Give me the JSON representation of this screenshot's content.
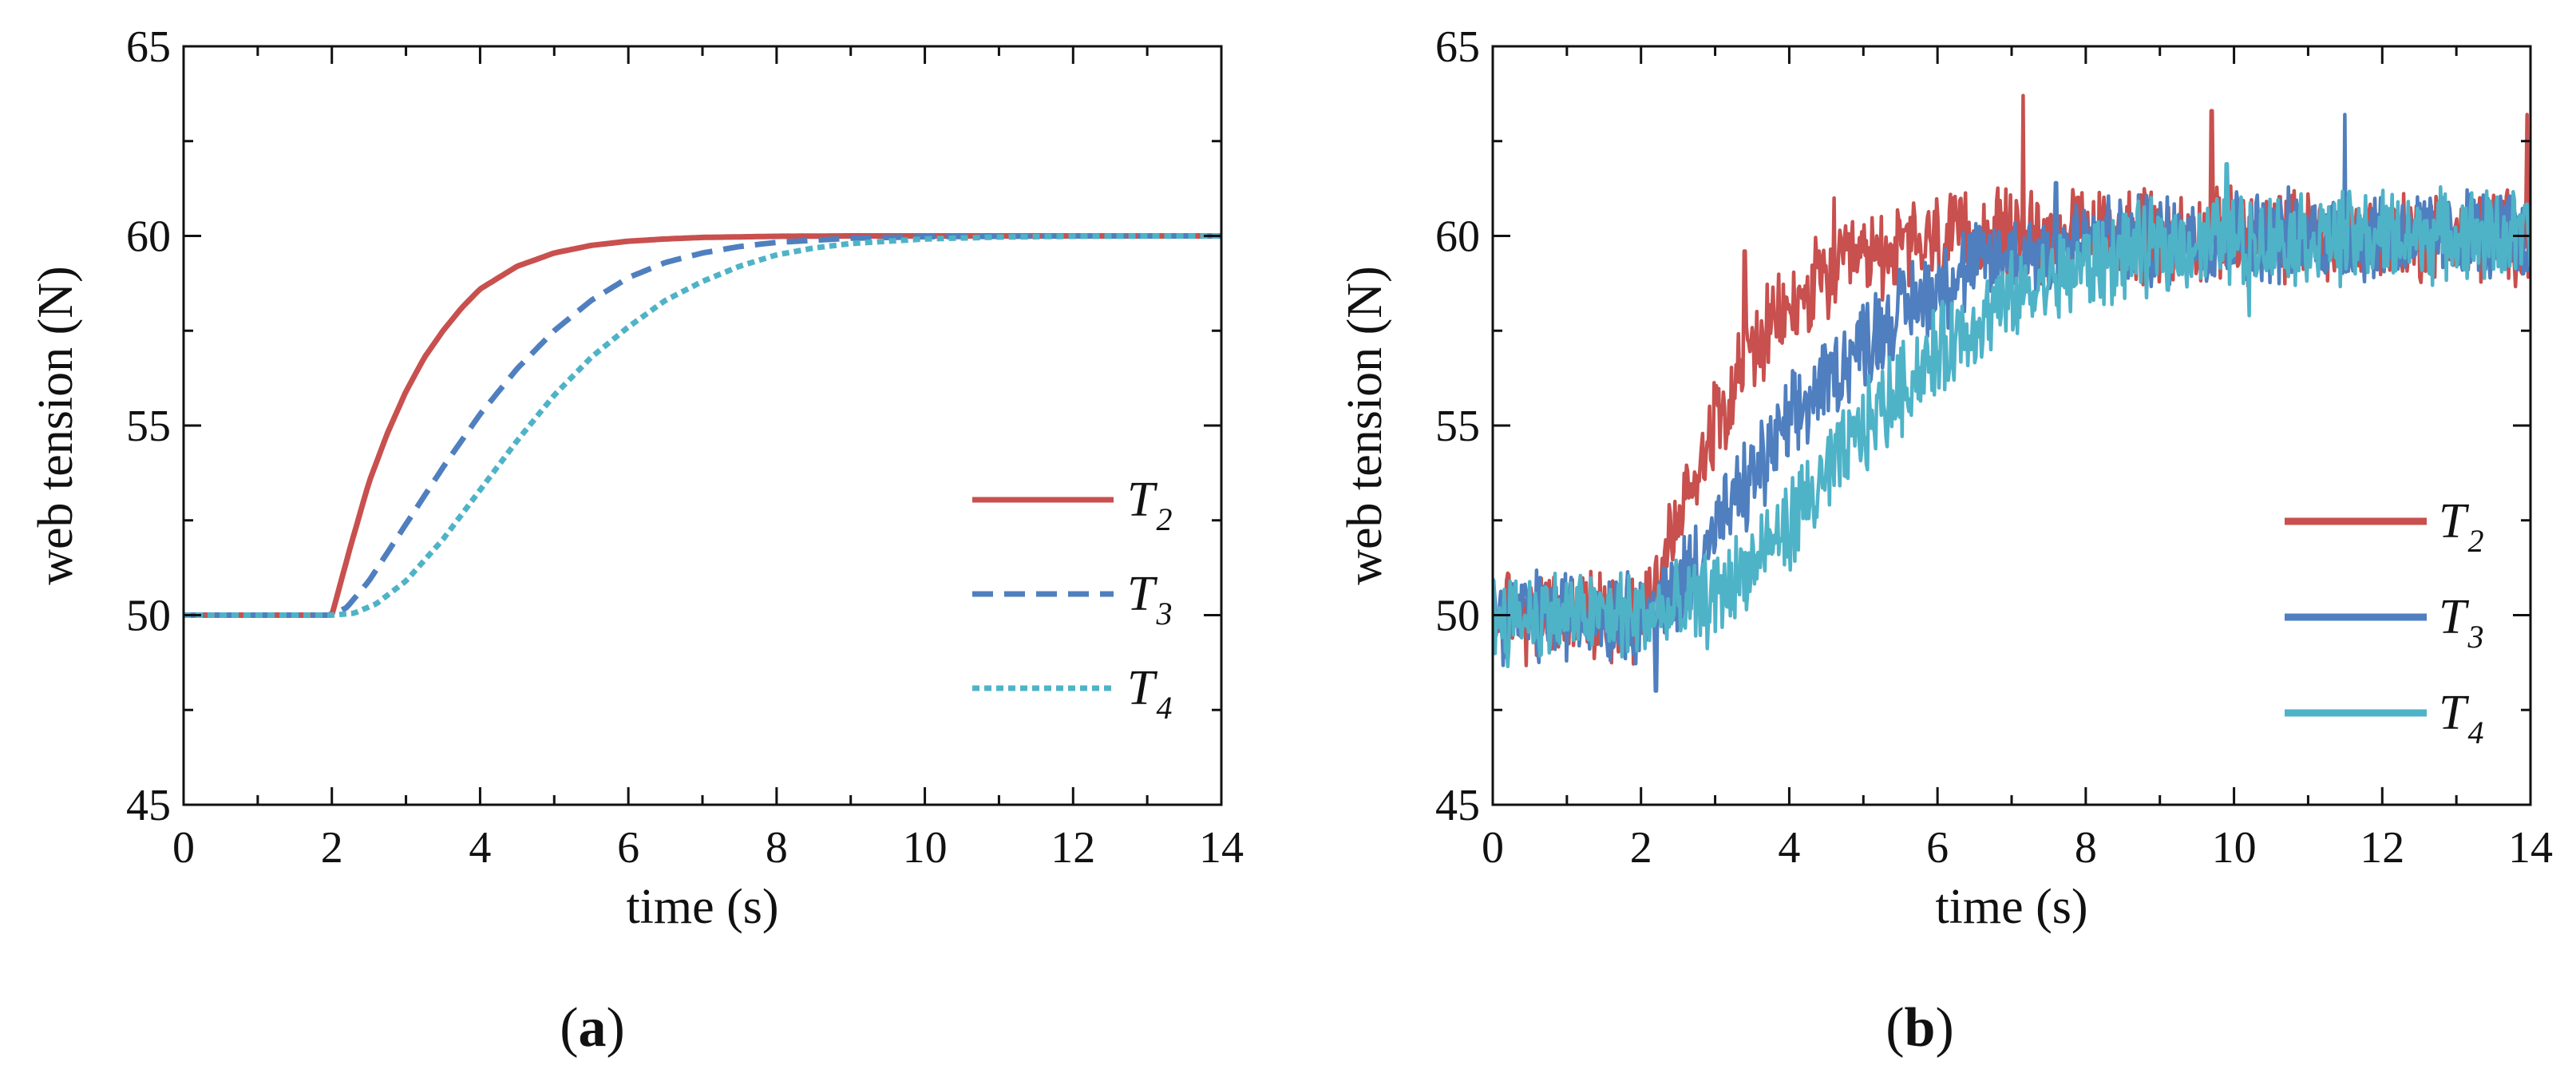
{
  "chart_data": [
    {
      "type": "line",
      "panel": "a",
      "panel_label": {
        "open": "(",
        "letter": "a",
        "close": ")"
      },
      "title": "",
      "xlabel": "time (s)",
      "ylabel": "web tension (N)",
      "xlim": [
        0,
        14
      ],
      "ylim": [
        45,
        65
      ],
      "xticks": [
        "0",
        "2",
        "4",
        "6",
        "8",
        "10",
        "12",
        "14"
      ],
      "yticks": [
        "45",
        "50",
        "55",
        "60",
        "65"
      ],
      "legend_position": "bottom-right",
      "series": [
        {
          "name": "T2",
          "label_main": "T",
          "label_sub": "2",
          "color": "#c8504e",
          "style": "solid",
          "x": [
            0,
            2,
            2.25,
            2.5,
            2.75,
            3,
            3.25,
            3.5,
            3.75,
            4,
            4.5,
            5,
            5.5,
            6,
            6.5,
            7,
            8,
            9,
            10,
            12,
            14
          ],
          "y": [
            50,
            50,
            51.8,
            53.5,
            54.8,
            55.9,
            56.8,
            57.5,
            58.1,
            58.6,
            59.2,
            59.55,
            59.75,
            59.86,
            59.92,
            59.96,
            59.99,
            60,
            60,
            60,
            60
          ]
        },
        {
          "name": "T3",
          "label_main": "T",
          "label_sub": "3",
          "color": "#4f7fbf",
          "style": "dashed",
          "x": [
            0,
            2,
            2.2,
            2.5,
            3,
            3.5,
            4,
            4.5,
            5,
            5.5,
            6,
            6.5,
            7,
            7.5,
            8,
            9,
            10,
            11,
            12,
            14
          ],
          "y": [
            50,
            50,
            50.2,
            50.9,
            52.4,
            53.9,
            55.3,
            56.5,
            57.5,
            58.3,
            58.9,
            59.3,
            59.55,
            59.72,
            59.83,
            59.94,
            59.98,
            59.99,
            60,
            60
          ]
        },
        {
          "name": "T4",
          "label_main": "T",
          "label_sub": "4",
          "color": "#4fb3c8",
          "style": "dotted",
          "x": [
            0,
            2,
            2.3,
            2.6,
            3,
            3.5,
            4,
            4.5,
            5,
            5.5,
            6,
            6.5,
            7,
            7.5,
            8,
            8.5,
            9,
            10,
            11,
            12,
            14
          ],
          "y": [
            50,
            50,
            50.05,
            50.3,
            50.9,
            52.0,
            53.3,
            54.6,
            55.8,
            56.8,
            57.6,
            58.3,
            58.8,
            59.2,
            59.5,
            59.68,
            59.8,
            59.92,
            59.97,
            59.99,
            60
          ]
        }
      ]
    },
    {
      "type": "line",
      "panel": "b",
      "panel_label": {
        "open": "(",
        "letter": "b",
        "close": ")"
      },
      "title": "",
      "xlabel": "time (s)",
      "ylabel": "web tension (N)",
      "xlim": [
        0,
        14
      ],
      "ylim": [
        45,
        65
      ],
      "xticks": [
        "0",
        "2",
        "4",
        "6",
        "8",
        "10",
        "12",
        "14"
      ],
      "yticks": [
        "45",
        "50",
        "55",
        "60",
        "65"
      ],
      "legend_position": "bottom-right",
      "noise": "high-frequency measurement noise of roughly ±0.8 N around each trend, with occasional spikes",
      "series": [
        {
          "name": "T2",
          "label_main": "T",
          "label_sub": "2",
          "color": "#c8504e",
          "style": "solid",
          "x": [
            0,
            2,
            2.5,
            3,
            3.5,
            4,
            4.5,
            5,
            5.5,
            6,
            7,
            8,
            10,
            12,
            14
          ],
          "y": [
            50,
            50,
            52.5,
            55.2,
            57.0,
            58.0,
            58.9,
            59.4,
            59.7,
            59.85,
            60,
            60,
            60,
            60,
            60
          ],
          "spikes": [
            [
              3.4,
              59.6
            ],
            [
              4.6,
              61.0
            ],
            [
              7.15,
              63.7
            ],
            [
              9.7,
              63.3
            ],
            [
              13.95,
              63.2
            ]
          ]
        },
        {
          "name": "T3",
          "label_main": "T",
          "label_sub": "3",
          "color": "#4f7fbf",
          "style": "solid",
          "x": [
            0,
            2.2,
            2.5,
            3,
            3.5,
            4,
            4.5,
            5,
            5.5,
            6,
            6.5,
            7,
            8,
            9,
            10,
            12,
            14
          ],
          "y": [
            50,
            50,
            50.8,
            52.2,
            53.6,
            55.0,
            56.2,
            57.2,
            58.0,
            58.7,
            59.2,
            59.5,
            59.8,
            59.95,
            60,
            60,
            60
          ],
          "spikes": [
            [
              2.2,
              48.0
            ],
            [
              7.6,
              61.4
            ],
            [
              11.5,
              63.2
            ]
          ]
        },
        {
          "name": "T4",
          "label_main": "T",
          "label_sub": "4",
          "color": "#4fb3c8",
          "style": "solid",
          "x": [
            0,
            2.4,
            3,
            3.5,
            4,
            4.5,
            5,
            5.5,
            6,
            6.5,
            7,
            7.5,
            8,
            8.5,
            9,
            10,
            12,
            14
          ],
          "y": [
            50,
            50,
            50.5,
            51.3,
            52.4,
            53.6,
            54.9,
            56.0,
            56.9,
            57.7,
            58.3,
            58.8,
            59.2,
            59.5,
            59.7,
            59.9,
            60,
            60
          ],
          "spikes": [
            [
              9.9,
              61.9
            ],
            [
              10.2,
              57.9
            ]
          ]
        }
      ]
    }
  ]
}
